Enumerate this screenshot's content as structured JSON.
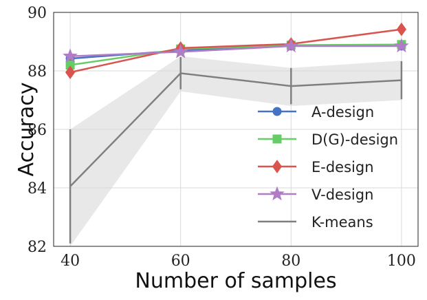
{
  "chart_data": {
    "type": "line",
    "title": "",
    "xlabel": "Number of samples",
    "ylabel": "Accuracy",
    "x": [
      40,
      60,
      80,
      100
    ],
    "xticks": [
      "40",
      "60",
      "80",
      "100"
    ],
    "yticks": [
      "82",
      "84",
      "86",
      "88",
      "90"
    ],
    "xlim": [
      37,
      103
    ],
    "ylim": [
      82,
      90
    ],
    "grid": true,
    "legend_position": "center-right",
    "series": [
      {
        "name": "A-design",
        "values": [
          88.42,
          88.7,
          88.85,
          88.85
        ],
        "color": "#4472c4",
        "marker": "circle"
      },
      {
        "name": "D(G)-design",
        "values": [
          88.2,
          88.75,
          88.88,
          88.9
        ],
        "color": "#66cc66",
        "marker": "square"
      },
      {
        "name": "E-design",
        "values": [
          87.95,
          88.78,
          88.92,
          89.42
        ],
        "color": "#d9534f",
        "marker": "diamond"
      },
      {
        "name": "V-design",
        "values": [
          88.5,
          88.65,
          88.85,
          88.85
        ],
        "color": "#b07cc6",
        "marker": "star"
      },
      {
        "name": "K-means",
        "values": [
          84.05,
          87.92,
          87.48,
          87.68
        ],
        "error": [
          1.95,
          0.55,
          0.62,
          0.65
        ],
        "band_low": [
          82.0,
          87.3,
          86.8,
          87.0
        ],
        "band_high": [
          86.0,
          88.5,
          88.1,
          88.35
        ],
        "color": "#7f7f7f",
        "marker": "none"
      }
    ]
  }
}
